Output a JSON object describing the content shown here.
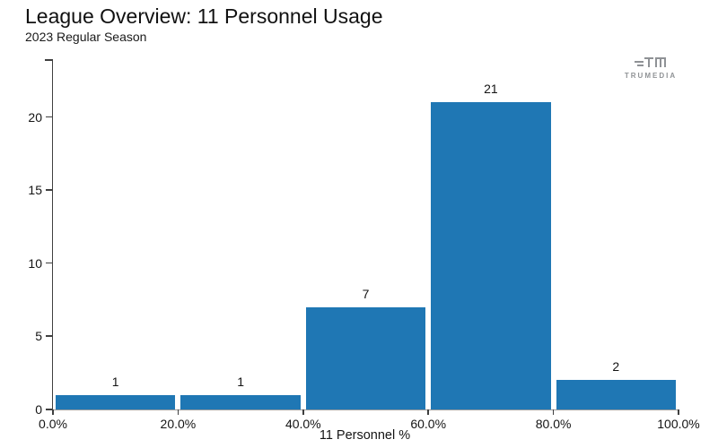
{
  "header": {
    "title": "League Overview: 11 Personnel Usage",
    "subtitle": "2023 Regular Season"
  },
  "logo": {
    "brand": "TruMedia",
    "text": "TRUMEDIA",
    "color": "#909396"
  },
  "chart_data": {
    "type": "bar",
    "title": "League Overview: 11 Personnel Usage",
    "subtitle": "2023 Regular Season",
    "xlabel": "11 Personnel %",
    "ylabel": "",
    "categories": [
      "0-20%",
      "20-40%",
      "40-60%",
      "60-80%",
      "80-100%"
    ],
    "bin_edges_pct": [
      0,
      20,
      40,
      60,
      80,
      100
    ],
    "values": [
      1,
      1,
      7,
      21,
      2
    ],
    "bar_labels": [
      "1",
      "1",
      "7",
      "21",
      "2"
    ],
    "x_tick_labels": [
      "0.0%",
      "20.0%",
      "40.0%",
      "60.0%",
      "80.0%",
      "100.0%"
    ],
    "y_ticks": [
      0,
      5,
      10,
      15,
      20
    ],
    "xlim": [
      0,
      100
    ],
    "ylim": [
      0,
      23.9
    ],
    "bar_color": "#1f77b4",
    "grid": false,
    "legend": false,
    "axis_color": "#3f3f3f",
    "baseline_color": "#9c9c9c",
    "text_color": "#141414"
  }
}
